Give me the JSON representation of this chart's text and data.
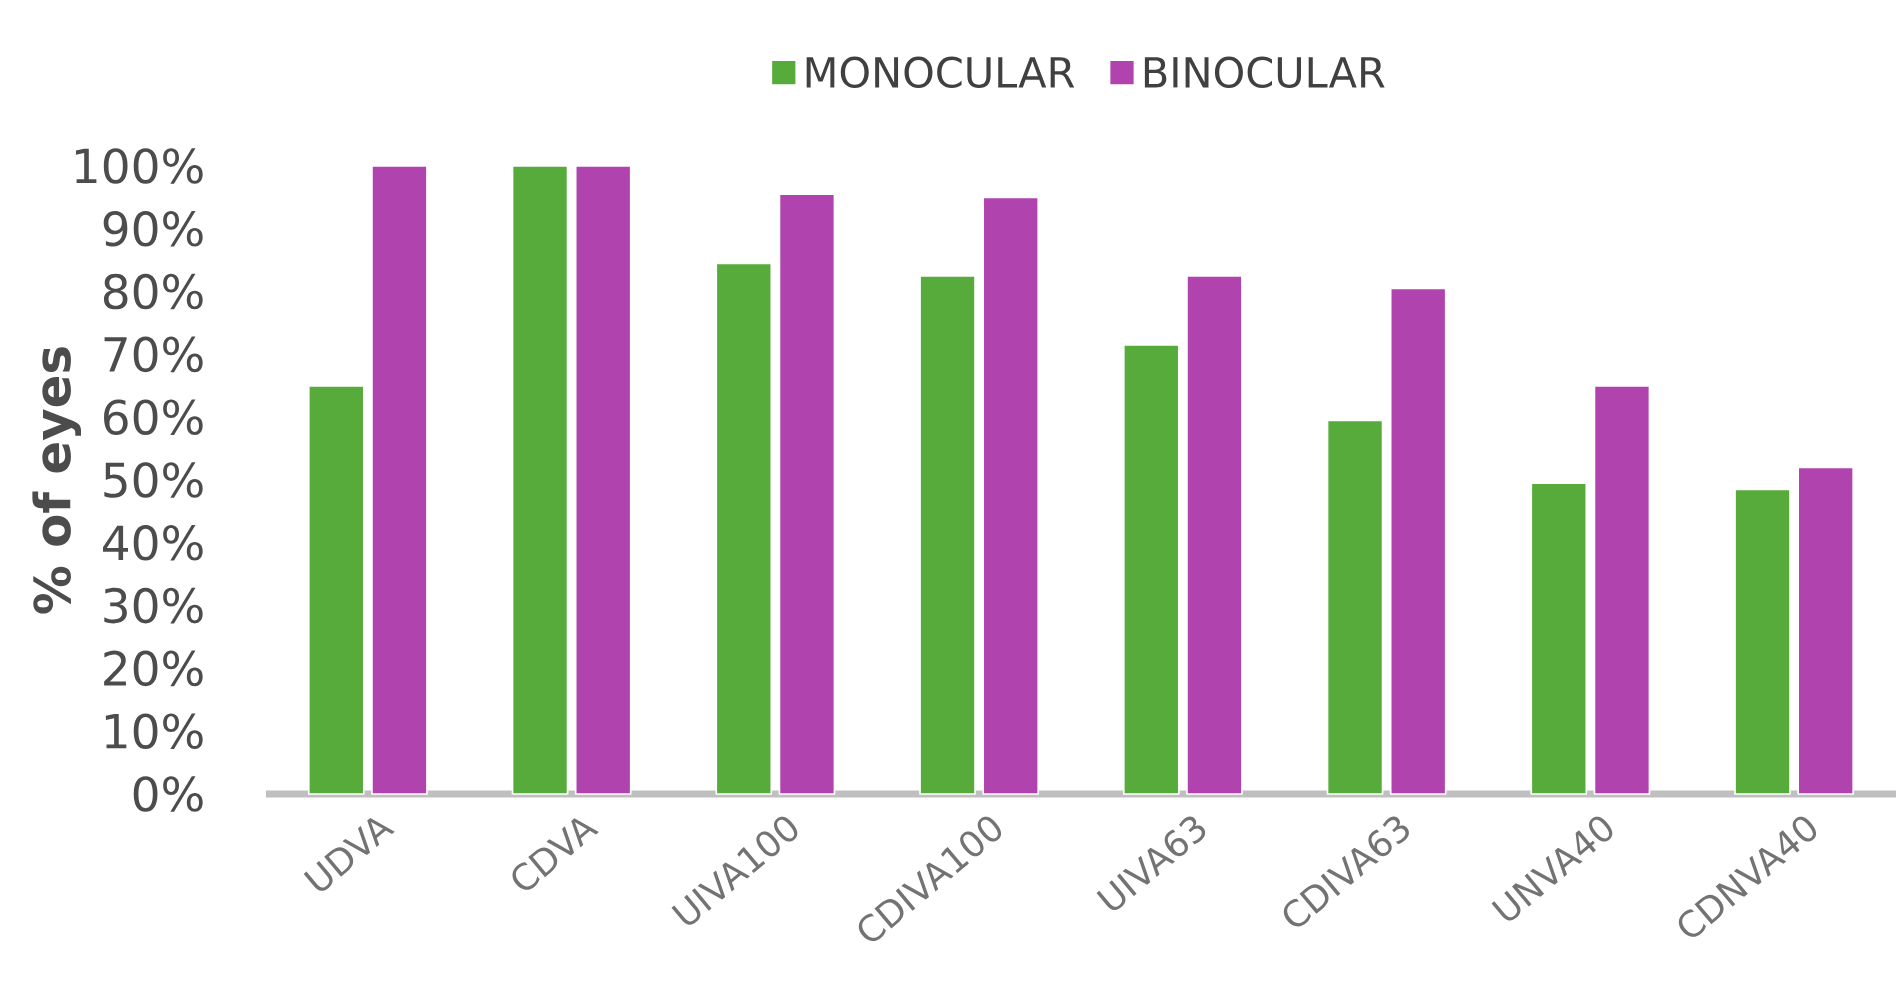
{
  "chart_data": {
    "type": "bar",
    "ylabel": "% of eyes",
    "categories": [
      "UDVA",
      "CDVA",
      "UIVA100",
      "CDIVA100",
      "UIVA63",
      "CDIVA63",
      "UNVA40",
      "CDNVA40"
    ],
    "series": [
      {
        "name": "MONOCULAR",
        "color": "#56ab3a",
        "values": [
          65,
          100,
          84.5,
          82.5,
          71.5,
          59.5,
          49.5,
          48.5
        ]
      },
      {
        "name": "BINOCULAR",
        "color": "#b043ad",
        "values": [
          100,
          100,
          95.5,
          95,
          82.5,
          80.5,
          65,
          52
        ]
      }
    ],
    "ylim": [
      0,
      100
    ],
    "yticks": [
      {
        "value": 0,
        "label": "0%"
      },
      {
        "value": 10,
        "label": "10%"
      },
      {
        "value": 20,
        "label": "20%"
      },
      {
        "value": 30,
        "label": "30%"
      },
      {
        "value": 40,
        "label": "40%"
      },
      {
        "value": 50,
        "label": "50%"
      },
      {
        "value": 60,
        "label": "60%"
      },
      {
        "value": 70,
        "label": "70%"
      },
      {
        "value": 80,
        "label": "80%"
      },
      {
        "value": 90,
        "label": "90%"
      },
      {
        "value": 100,
        "label": "100%"
      }
    ],
    "legend": "top"
  }
}
